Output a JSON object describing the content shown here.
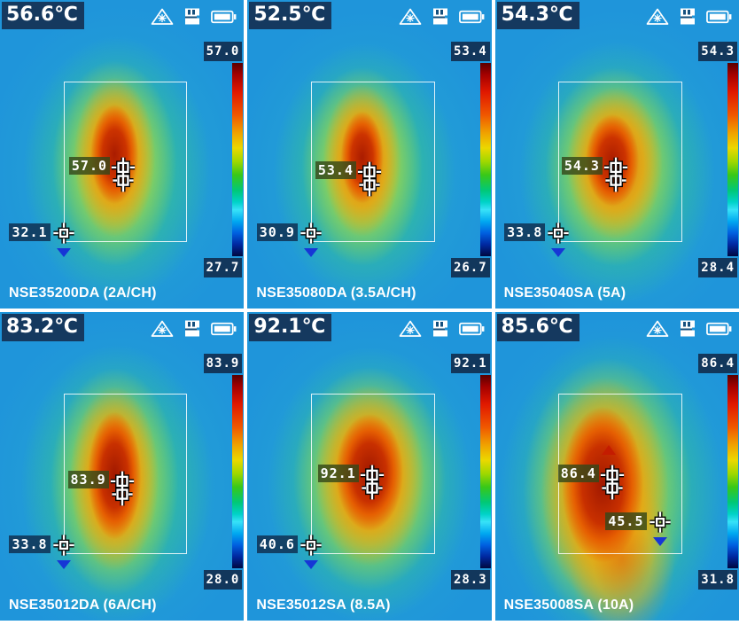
{
  "app": {
    "title": "Thermal camera capture montage"
  },
  "status_icons": [
    {
      "name": "laser-warning"
    },
    {
      "name": "sd-card"
    },
    {
      "name": "battery"
    }
  ],
  "colors": {
    "overlay_navy": "#15395f",
    "marker_green_bg": "#34481a",
    "scale_label_bg": "#12375c",
    "cold_arrow_blue": "#1636d6",
    "hot_arrow_red": "#c41c00",
    "scale_top": "#a40000",
    "scale_bottom": "#000840"
  },
  "panels": [
    {
      "reading": "56.6℃",
      "scale_max": "57.0",
      "scale_min": "27.7",
      "center_value": "57.0",
      "low_value": "32.1",
      "label": "NSE35200DA (2A/CH)"
    },
    {
      "reading": "52.5℃",
      "scale_max": "53.4",
      "scale_min": "26.7",
      "center_value": "53.4",
      "low_value": "30.9",
      "label": "NSE35080DA (3.5A/CH)"
    },
    {
      "reading": "54.3℃",
      "scale_max": "54.3",
      "scale_min": "28.4",
      "center_value": "54.3",
      "low_value": "33.8",
      "label": "NSE35040SA (5A)"
    },
    {
      "reading": "83.2℃",
      "scale_max": "83.9",
      "scale_min": "28.0",
      "center_value": "83.9",
      "low_value": "33.8",
      "label": "NSE35012DA (6A/CH)"
    },
    {
      "reading": "92.1℃",
      "scale_max": "92.1",
      "scale_min": "28.3",
      "center_value": "92.1",
      "low_value": "40.6",
      "label": "NSE35012SA (8.5A)"
    },
    {
      "reading": "85.6℃",
      "scale_max": "86.4",
      "scale_min": "31.8",
      "center_value": "86.4",
      "low_value": "45.5",
      "label": "NSE35008SA (10A)"
    }
  ]
}
